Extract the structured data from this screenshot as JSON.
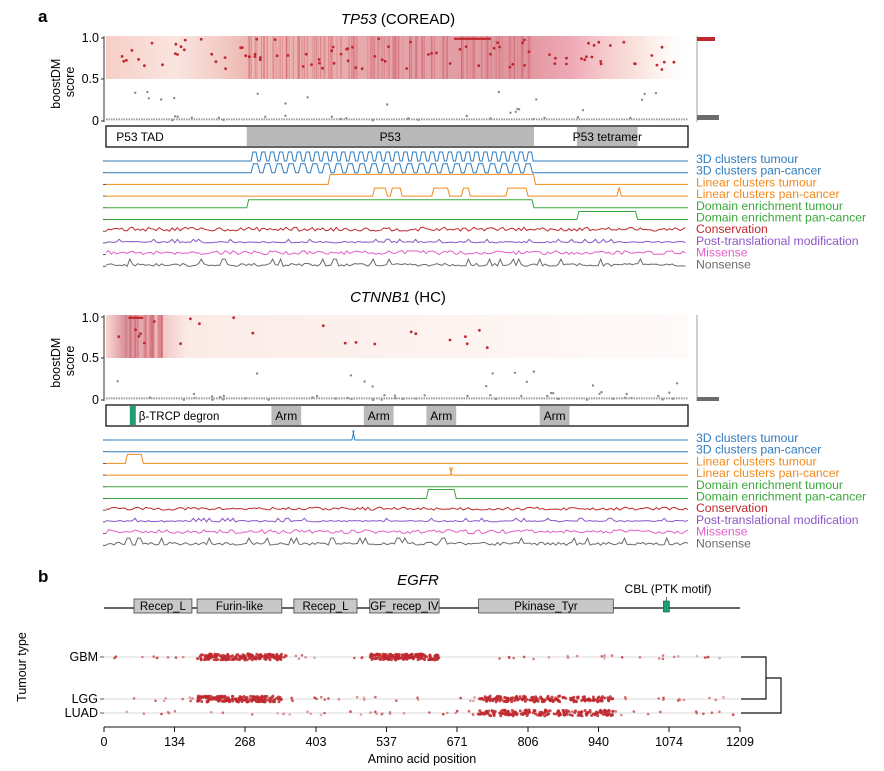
{
  "panel_a_label": "a",
  "panel_b_label": "b",
  "colors": {
    "red": "#c0282e",
    "blue": "#2f7bbf",
    "orange": "#f28a1c",
    "green": "#3aa83a",
    "purple": "#8c55c9",
    "pink": "#e25fc8",
    "gray": "#6b6b6b",
    "degron": "#1f9e6f"
  },
  "chart_data": [
    {
      "type": "scatter",
      "id": "tp53",
      "gene": "TP53",
      "cohort": "(COREAD)",
      "ylabel_line1": "boostDM",
      "ylabel_line2": "score",
      "yticks": [
        "1.0",
        "0.5",
        "0"
      ],
      "ylim": [
        0,
        1
      ],
      "protein_length": 393,
      "domains": [
        {
          "label": "P53 TAD",
          "start": 1,
          "end": 58,
          "shaded": false
        },
        {
          "label": "P53",
          "start": 95,
          "end": 289,
          "shaded": true
        },
        {
          "label": "P53 tetramer",
          "start": 318,
          "end": 359,
          "shaded": true
        }
      ],
      "tracks": [
        {
          "label": "3D clusters tumour",
          "color": "blue"
        },
        {
          "label": "3D clusters pan-cancer",
          "color": "blue"
        },
        {
          "label": "Linear clusters tumour",
          "color": "orange"
        },
        {
          "label": "Linear clusters pan-cancer",
          "color": "orange"
        },
        {
          "label": "Domain enrichment tumour",
          "color": "green"
        },
        {
          "label": "Domain enrichment pan-cancer",
          "color": "green"
        },
        {
          "label": "Conservation",
          "color": "red"
        },
        {
          "label": "Post-translational modification",
          "color": "purple"
        },
        {
          "label": "Missense",
          "color": "pink"
        },
        {
          "label": "Nonsense",
          "color": "gray"
        }
      ]
    },
    {
      "type": "scatter",
      "id": "ctnnb1",
      "gene": "CTNNB1",
      "cohort": "(HC)",
      "ylabel_line1": "boostDM",
      "ylabel_line2": "score",
      "yticks": [
        "1.0",
        "0.5",
        "0"
      ],
      "ylim": [
        0,
        1
      ],
      "protein_length": 781,
      "domains": [
        {
          "label": "β-TRCP degron",
          "start": 32,
          "end": 45,
          "shaded": false,
          "marker": true
        },
        {
          "label": "Arm",
          "start": 222,
          "end": 262,
          "shaded": true
        },
        {
          "label": "Arm",
          "start": 346,
          "end": 386,
          "shaded": true
        },
        {
          "label": "Arm",
          "start": 430,
          "end": 470,
          "shaded": true
        },
        {
          "label": "Arm",
          "start": 582,
          "end": 622,
          "shaded": true
        }
      ],
      "tracks": [
        {
          "label": "3D clusters tumour",
          "color": "blue"
        },
        {
          "label": "3D clusters pan-cancer",
          "color": "blue"
        },
        {
          "label": "Linear clusters tumour",
          "color": "orange"
        },
        {
          "label": "Linear clusters pan-cancer",
          "color": "orange"
        },
        {
          "label": "Domain enrichment tumour",
          "color": "green"
        },
        {
          "label": "Domain enrichment pan-cancer",
          "color": "green"
        },
        {
          "label": "Conservation",
          "color": "red"
        },
        {
          "label": "Post-translational modification",
          "color": "purple"
        },
        {
          "label": "Missense",
          "color": "pink"
        },
        {
          "label": "Nonsense",
          "color": "gray"
        }
      ]
    },
    {
      "type": "scatter",
      "id": "egfr",
      "gene": "EGFR",
      "protein_length": 1210,
      "domains": [
        {
          "label": "Recep_L",
          "start": 57,
          "end": 167
        },
        {
          "label": "Furin-like",
          "start": 177,
          "end": 338
        },
        {
          "label": "Recep_L",
          "start": 361,
          "end": 481
        },
        {
          "label": "GF_recep_IV",
          "start": 505,
          "end": 637
        },
        {
          "label": "Pkinase_Tyr",
          "start": 712,
          "end": 968
        }
      ],
      "motif": {
        "label": "CBL (PTK motif)",
        "position": 1069
      },
      "rows": [
        "GBM",
        "LGG",
        "LUAD"
      ],
      "row_hotspots": {
        "GBM": [
          [
            177,
            338
          ],
          [
            505,
            637
          ]
        ],
        "LGG": [
          [
            177,
            338
          ],
          [
            712,
            968
          ]
        ],
        "LUAD": [
          [
            712,
            968
          ]
        ]
      },
      "ylabel": "Tumour type",
      "xlabel": "Amino acid position",
      "xticks": [
        0,
        134,
        268,
        403,
        537,
        671,
        806,
        940,
        1074,
        1209
      ],
      "xlim": [
        0,
        1209
      ]
    }
  ]
}
